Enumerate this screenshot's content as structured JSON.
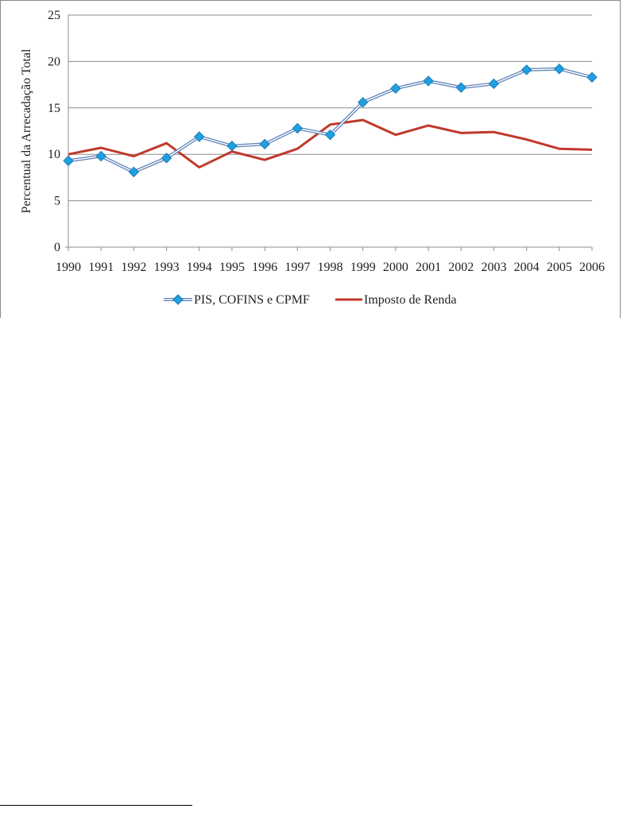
{
  "chart_data": {
    "type": "line",
    "title": "",
    "xlabel": "",
    "ylabel": "Percentual da Arrecadação Total",
    "ylim": [
      0,
      25
    ],
    "yticks": [
      "0",
      "5",
      "10",
      "15",
      "20",
      "25"
    ],
    "grid": true,
    "legend_position": "bottom",
    "x": [
      "1990",
      "1991",
      "1992",
      "1993",
      "1994",
      "1995",
      "1996",
      "1997",
      "1998",
      "1999",
      "2000",
      "2001",
      "2002",
      "2003",
      "2004",
      "2005",
      "2006"
    ],
    "series": [
      {
        "name": "PIS, COFINS e CPMF",
        "color": "#1fa0e0",
        "marker": "diamond",
        "values": [
          9.3,
          9.8,
          8.1,
          9.6,
          11.9,
          10.9,
          11.1,
          12.8,
          12.1,
          15.6,
          17.1,
          17.9,
          17.2,
          17.6,
          19.1,
          19.2,
          18.3
        ]
      },
      {
        "name": "Imposto de Renda",
        "color": "#c0392b",
        "marker": "none",
        "values": [
          10.0,
          10.7,
          9.8,
          11.2,
          8.6,
          10.3,
          9.4,
          10.6,
          13.2,
          13.7,
          12.1,
          13.1,
          12.3,
          12.4,
          11.6,
          10.6,
          10.5
        ]
      }
    ]
  }
}
